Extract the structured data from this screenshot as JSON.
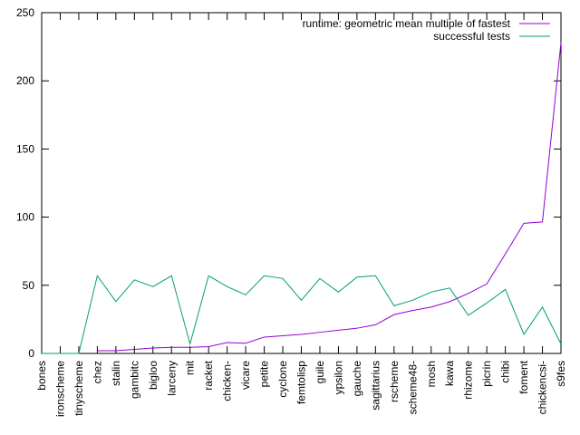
{
  "chart_data": {
    "type": "line",
    "title": "",
    "xlabel": "",
    "ylabel": "",
    "ylim": [
      0,
      250
    ],
    "yticks": [
      0,
      50,
      100,
      150,
      200,
      250
    ],
    "grid": false,
    "legend_position": "top-right",
    "categories": [
      "bones",
      "ironscheme",
      "tinyscheme",
      "chez",
      "stalin",
      "gambitc",
      "bigloo",
      "larceny",
      "mit",
      "racket",
      "chicken-",
      "vicare",
      "petite",
      "cyclone",
      "femtolisp",
      "guile",
      "ypsilon",
      "gauche",
      "sagittarius",
      "rscheme",
      "scheme48-",
      "mosh",
      "kawa",
      "rhizome",
      "picrin",
      "chibi",
      "foment",
      "chickencsi-",
      "s9fes"
    ],
    "series": [
      {
        "name": "runtime: geometric mean multiple of fastest",
        "color": "#9400d3",
        "values": [
          null,
          null,
          null,
          2,
          2,
          3,
          4,
          4.5,
          4.5,
          5,
          8,
          7.5,
          12,
          13,
          14,
          15.5,
          17,
          18.5,
          21,
          28.5,
          31.5,
          34,
          38,
          44,
          51,
          73,
          95.5,
          96.5,
          228
        ]
      },
      {
        "name": "successful tests",
        "color": "#009e73",
        "values": [
          0,
          0,
          0,
          57,
          38,
          54,
          49,
          57,
          7,
          57,
          49,
          43,
          57,
          55,
          39,
          55,
          45,
          56,
          57,
          35,
          39,
          45,
          48,
          28,
          37,
          47,
          14,
          34,
          7
        ]
      }
    ]
  }
}
